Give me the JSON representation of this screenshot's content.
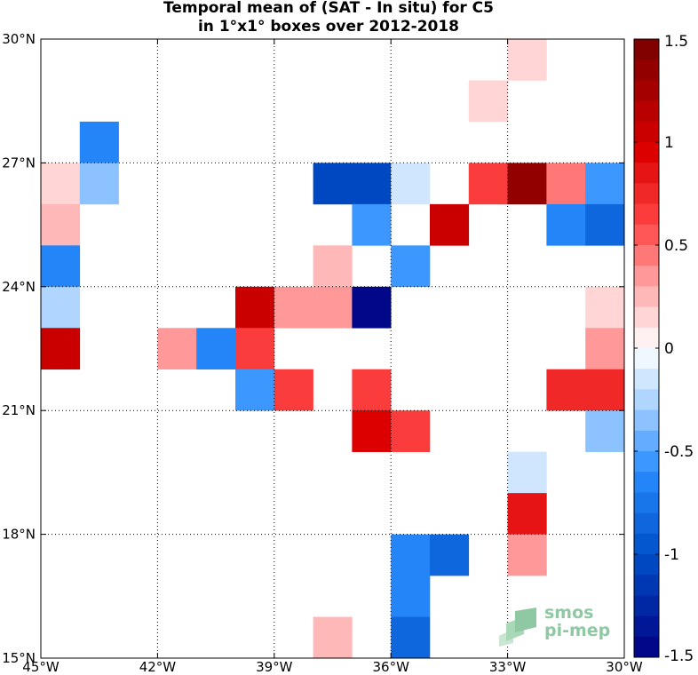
{
  "chart_data": {
    "type": "heatmap",
    "title": "Temporal mean of (SAT - In situ) for C5",
    "subtitle": "in 1°x1° boxes over 2012-2018",
    "xlim": [
      -45,
      -30
    ],
    "ylim": [
      15,
      30
    ],
    "x_ticks": [
      -45,
      -42,
      -39,
      -36,
      -33,
      -30
    ],
    "y_ticks": [
      15,
      18,
      21,
      24,
      27,
      30
    ],
    "x_tick_labels": [
      "45°W",
      "42°W",
      "39°W",
      "36°W",
      "33°W",
      "30°W"
    ],
    "y_tick_labels": [
      "15°N",
      "18°N",
      "21°N",
      "24°N",
      "27°N",
      "30°N"
    ],
    "grid": true,
    "colorbar": {
      "range": [
        -1.5,
        1.5
      ],
      "levels": 30,
      "tick_values": [
        1.5,
        1,
        0.5,
        0,
        -0.5,
        -1,
        -1.5
      ],
      "tick_labels": [
        "1.5",
        "1",
        "0.5",
        "0",
        "-0.5",
        "-1",
        "-1.5"
      ],
      "colormap": "blue-white-red"
    },
    "cells": [
      {
        "lon": -33,
        "lat": 29,
        "value": 0.15
      },
      {
        "lon": -34,
        "lat": 28,
        "value": 0.15
      },
      {
        "lon": -44,
        "lat": 27,
        "value": -0.65
      },
      {
        "lon": -45,
        "lat": 26,
        "value": 0.15
      },
      {
        "lon": -44,
        "lat": 26,
        "value": -0.35
      },
      {
        "lon": -38,
        "lat": 26,
        "value": -1.05
      },
      {
        "lon": -37,
        "lat": 26,
        "value": -1.05
      },
      {
        "lon": -36,
        "lat": 26,
        "value": -0.15
      },
      {
        "lon": -34,
        "lat": 26,
        "value": 0.65
      },
      {
        "lon": -33,
        "lat": 26,
        "value": 1.35
      },
      {
        "lon": -32,
        "lat": 26,
        "value": 0.45
      },
      {
        "lon": -31,
        "lat": 26,
        "value": -0.55
      },
      {
        "lon": -45,
        "lat": 25,
        "value": 0.25
      },
      {
        "lon": -37,
        "lat": 25,
        "value": -0.55
      },
      {
        "lon": -35,
        "lat": 25,
        "value": 1.05
      },
      {
        "lon": -32,
        "lat": 25,
        "value": -0.65
      },
      {
        "lon": -31,
        "lat": 25,
        "value": -0.85
      },
      {
        "lon": -45,
        "lat": 24,
        "value": -0.65
      },
      {
        "lon": -38,
        "lat": 24,
        "value": 0.25
      },
      {
        "lon": -36,
        "lat": 24,
        "value": -0.55
      },
      {
        "lon": -45,
        "lat": 23,
        "value": -0.25
      },
      {
        "lon": -40,
        "lat": 23,
        "value": 1.05
      },
      {
        "lon": -39,
        "lat": 23,
        "value": 0.35
      },
      {
        "lon": -38,
        "lat": 23,
        "value": 0.35
      },
      {
        "lon": -37,
        "lat": 23,
        "value": -1.45
      },
      {
        "lon": -31,
        "lat": 23,
        "value": 0.15
      },
      {
        "lon": -45,
        "lat": 22,
        "value": 1.05
      },
      {
        "lon": -42,
        "lat": 22,
        "value": 0.35
      },
      {
        "lon": -41,
        "lat": 22,
        "value": -0.65
      },
      {
        "lon": -40,
        "lat": 22,
        "value": 0.65
      },
      {
        "lon": -31,
        "lat": 22,
        "value": 0.35
      },
      {
        "lon": -40,
        "lat": 21,
        "value": -0.55
      },
      {
        "lon": -39,
        "lat": 21,
        "value": 0.65
      },
      {
        "lon": -37,
        "lat": 21,
        "value": 0.65
      },
      {
        "lon": -32,
        "lat": 21,
        "value": 0.75
      },
      {
        "lon": -31,
        "lat": 21,
        "value": 0.75
      },
      {
        "lon": -37,
        "lat": 20,
        "value": 0.95
      },
      {
        "lon": -36,
        "lat": 20,
        "value": 0.65
      },
      {
        "lon": -31,
        "lat": 20,
        "value": -0.35
      },
      {
        "lon": -33,
        "lat": 19,
        "value": -0.15
      },
      {
        "lon": -33,
        "lat": 18,
        "value": 0.85
      },
      {
        "lon": -36,
        "lat": 17,
        "value": -0.65
      },
      {
        "lon": -35,
        "lat": 17,
        "value": -0.85
      },
      {
        "lon": -33,
        "lat": 17,
        "value": 0.35
      },
      {
        "lon": -36,
        "lat": 16,
        "value": -0.65
      },
      {
        "lon": -38,
        "lat": 15,
        "value": 0.25
      },
      {
        "lon": -36,
        "lat": 15,
        "value": -0.85
      }
    ]
  },
  "logo": {
    "line1": "smos",
    "line2": "pi-mep"
  }
}
